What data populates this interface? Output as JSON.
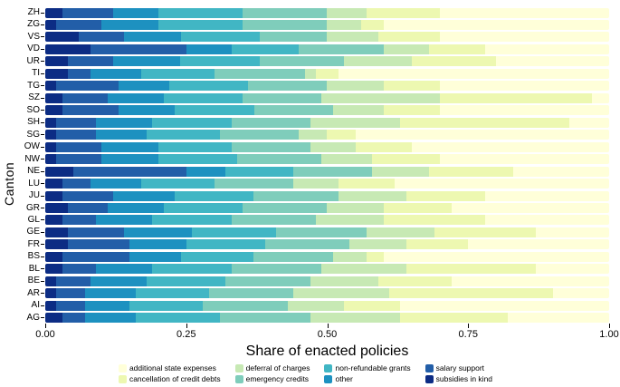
{
  "chart_data": {
    "type": "bar",
    "orientation": "horizontal",
    "stacked": true,
    "title": "",
    "xlabel": "Share of enacted policies",
    "ylabel": "Canton",
    "xlim": [
      0,
      1
    ],
    "x_ticks": [
      "0.00",
      "0.25",
      "0.50",
      "0.75",
      "1.00"
    ],
    "x_tick_values": [
      0,
      0.25,
      0.5,
      0.75,
      1
    ],
    "grid": false,
    "categories": [
      "ZH",
      "ZG",
      "VS",
      "VD",
      "UR",
      "TI",
      "TG",
      "SZ",
      "SO",
      "SH",
      "SG",
      "OW",
      "NW",
      "NE",
      "LU",
      "JU",
      "GR",
      "GL",
      "GE",
      "FR",
      "BS",
      "BL",
      "BE",
      "AR",
      "AI",
      "AG"
    ],
    "series": [
      {
        "name": "subsidies in kind",
        "color": "#0c2c84",
        "values": [
          0.03,
          0.02,
          0.06,
          0.08,
          0.04,
          0.04,
          0.02,
          0.03,
          0.03,
          0.02,
          0.02,
          0.02,
          0.02,
          0.05,
          0.03,
          0.03,
          0.04,
          0.03,
          0.04,
          0.04,
          0.03,
          0.03,
          0.02,
          0.02,
          0.02,
          0.03
        ]
      },
      {
        "name": "salary support",
        "color": "#225ea8",
        "values": [
          0.09,
          0.08,
          0.08,
          0.17,
          0.08,
          0.04,
          0.11,
          0.08,
          0.1,
          0.07,
          0.07,
          0.08,
          0.08,
          0.2,
          0.05,
          0.09,
          0.07,
          0.06,
          0.1,
          0.11,
          0.12,
          0.06,
          0.06,
          0.05,
          0.05,
          0.04
        ]
      },
      {
        "name": "other",
        "color": "#1d91c0",
        "values": [
          0.08,
          0.1,
          0.1,
          0.08,
          0.12,
          0.09,
          0.09,
          0.1,
          0.1,
          0.1,
          0.09,
          0.1,
          0.1,
          0.07,
          0.09,
          0.11,
          0.1,
          0.1,
          0.12,
          0.1,
          0.09,
          0.1,
          0.1,
          0.09,
          0.08,
          0.09
        ]
      },
      {
        "name": "non-refundable grants",
        "color": "#41b6c4",
        "values": [
          0.15,
          0.15,
          0.14,
          0.12,
          0.14,
          0.13,
          0.14,
          0.14,
          0.14,
          0.14,
          0.13,
          0.13,
          0.14,
          0.12,
          0.13,
          0.14,
          0.14,
          0.14,
          0.15,
          0.14,
          0.13,
          0.14,
          0.14,
          0.13,
          0.13,
          0.15
        ]
      },
      {
        "name": "emergency credits",
        "color": "#7fcdbb",
        "values": [
          0.15,
          0.15,
          0.12,
          0.15,
          0.15,
          0.16,
          0.14,
          0.14,
          0.14,
          0.14,
          0.14,
          0.14,
          0.15,
          0.14,
          0.14,
          0.15,
          0.15,
          0.15,
          0.16,
          0.15,
          0.14,
          0.16,
          0.15,
          0.15,
          0.15,
          0.16
        ]
      },
      {
        "name": "deferral of charges",
        "color": "#c7e9b4",
        "values": [
          0.07,
          0.06,
          0.09,
          0.08,
          0.12,
          0.02,
          0.1,
          0.21,
          0.09,
          0.16,
          0.05,
          0.08,
          0.09,
          0.1,
          0.08,
          0.12,
          0.1,
          0.12,
          0.12,
          0.1,
          0.06,
          0.15,
          0.12,
          0.17,
          0.1,
          0.16
        ]
      },
      {
        "name": "cancellation of credit debts",
        "color": "#edf8b1",
        "values": [
          0.13,
          0.04,
          0.11,
          0.1,
          0.15,
          0.04,
          0.1,
          0.27,
          0.1,
          0.3,
          0.05,
          0.1,
          0.12,
          0.15,
          0.1,
          0.14,
          0.12,
          0.18,
          0.18,
          0.11,
          0.03,
          0.23,
          0.13,
          0.29,
          0.1,
          0.19
        ]
      },
      {
        "name": "additional state expenses",
        "color": "#ffffd9",
        "values": [
          0.3,
          0.4,
          0.3,
          0.22,
          0.2,
          0.48,
          0.3,
          0.03,
          0.3,
          0.07,
          0.45,
          0.35,
          0.3,
          0.17,
          0.38,
          0.22,
          0.28,
          0.22,
          0.13,
          0.25,
          0.4,
          0.13,
          0.28,
          0.1,
          0.37,
          0.18
        ]
      }
    ],
    "legend": {
      "position": "bottom",
      "items": [
        {
          "label": "additional state expenses",
          "color": "#ffffd9"
        },
        {
          "label": "cancellation of credit debts",
          "color": "#edf8b1"
        },
        {
          "label": "deferral of charges",
          "color": "#c7e9b4"
        },
        {
          "label": "emergency credits",
          "color": "#7fcdbb"
        },
        {
          "label": "non-refundable grants",
          "color": "#41b6c4"
        },
        {
          "label": "other",
          "color": "#1d91c0"
        },
        {
          "label": "salary support",
          "color": "#225ea8"
        },
        {
          "label": "subsidies in kind",
          "color": "#0c2c84"
        }
      ]
    }
  }
}
